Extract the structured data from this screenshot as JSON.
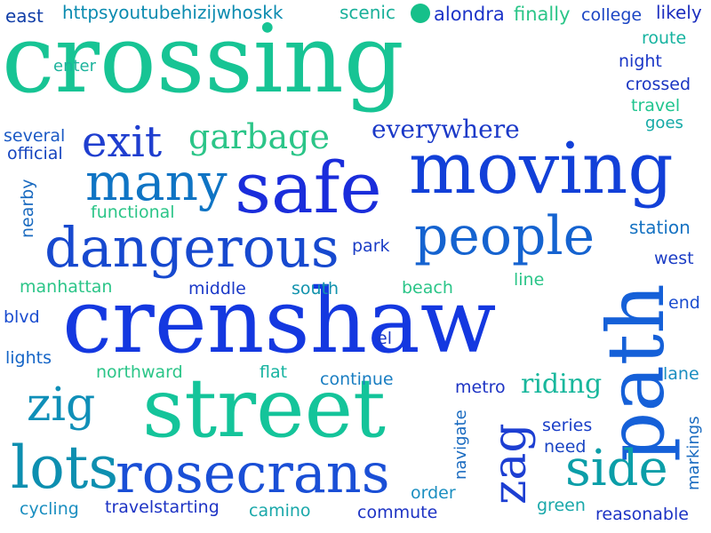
{
  "palette": {
    "teal": "#17c494",
    "sea": "#12b3a0",
    "cyan": "#0aa6b8",
    "sky": "#0b7fc8",
    "azure": "#1459d9",
    "blue": "#1f3fd6",
    "navy": "#2234c9",
    "green": "#29c783"
  },
  "words": [
    {
      "id": "crossing",
      "text": "crossing",
      "color": "#17c494"
    },
    {
      "id": "crenshaw",
      "text": "crenshaw",
      "color": "#1438e0"
    },
    {
      "id": "street",
      "text": "street",
      "color": "#14c49a"
    },
    {
      "id": "path",
      "text": "path",
      "color": "#1560d8"
    },
    {
      "id": "safe",
      "text": "safe",
      "color": "#1a2ddb"
    },
    {
      "id": "moving",
      "text": "moving",
      "color": "#1240d8"
    },
    {
      "id": "rosecrans",
      "text": "rosecrans",
      "color": "#1a4fd6"
    },
    {
      "id": "dangerous",
      "text": "dangerous",
      "color": "#1749cf"
    },
    {
      "id": "lots",
      "text": "lots",
      "color": "#0d8fb0"
    },
    {
      "id": "people",
      "text": "people",
      "color": "#1563d0"
    },
    {
      "id": "many",
      "text": "many",
      "color": "#0f74c4"
    },
    {
      "id": "exit",
      "text": "exit",
      "color": "#1f3ecf"
    },
    {
      "id": "side",
      "text": "side",
      "color": "#0b9ea8"
    },
    {
      "id": "zig",
      "text": "zig",
      "color": "#0f8fb8"
    },
    {
      "id": "zag",
      "text": "zag",
      "color": "#1d3fd2"
    },
    {
      "id": "garbage",
      "text": "garbage",
      "color": "#2bc588"
    },
    {
      "id": "everywhere",
      "text": "everywhere",
      "color": "#1b39c8"
    },
    {
      "id": "riding",
      "text": "riding",
      "color": "#18b79c"
    },
    {
      "id": "httpsyoutubehizijwhoskk",
      "text": "httpsyoutubehizijwhoskk",
      "color": "#0b8bb0"
    },
    {
      "id": "east",
      "text": "east",
      "color": "#123fa8"
    },
    {
      "id": "scenic",
      "text": "scenic",
      "color": "#19b09a"
    },
    {
      "id": "alondra",
      "text": "alondra",
      "color": "#1b33c8"
    },
    {
      "id": "finally",
      "text": "finally",
      "color": "#2bc588"
    },
    {
      "id": "college",
      "text": "college",
      "color": "#1b45c4"
    },
    {
      "id": "likely",
      "text": "likely",
      "color": "#1d2fbf"
    },
    {
      "id": "route",
      "text": "route",
      "color": "#16b3a0"
    },
    {
      "id": "night",
      "text": "night",
      "color": "#1b37c7"
    },
    {
      "id": "crossed",
      "text": "crossed",
      "color": "#1a35c2"
    },
    {
      "id": "travel",
      "text": "travel",
      "color": "#20c58f"
    },
    {
      "id": "goes",
      "text": "goes",
      "color": "#13a9a6"
    },
    {
      "id": "enter",
      "text": "enter",
      "color": "#1cb39c"
    },
    {
      "id": "several",
      "text": "several",
      "color": "#1b5ac5"
    },
    {
      "id": "official",
      "text": "official",
      "color": "#1544bf"
    },
    {
      "id": "nearby",
      "text": "nearby",
      "color": "#1b6bc0"
    },
    {
      "id": "functional",
      "text": "functional",
      "color": "#2bc588"
    },
    {
      "id": "station",
      "text": "station",
      "color": "#1572c2"
    },
    {
      "id": "west",
      "text": "west",
      "color": "#1a3cc5"
    },
    {
      "id": "park",
      "text": "park",
      "color": "#1a3cc5"
    },
    {
      "id": "manhattan",
      "text": "manhattan",
      "color": "#2bc588"
    },
    {
      "id": "middle",
      "text": "middle",
      "color": "#1b39c8"
    },
    {
      "id": "south",
      "text": "south",
      "color": "#1293ad"
    },
    {
      "id": "beach",
      "text": "beach",
      "color": "#2bc588"
    },
    {
      "id": "line",
      "text": "line",
      "color": "#2bc588"
    },
    {
      "id": "end",
      "text": "end",
      "color": "#1a4ccf"
    },
    {
      "id": "blvd",
      "text": "blvd",
      "color": "#1a4ccf"
    },
    {
      "id": "el",
      "text": "el",
      "color": "#1b39c8"
    },
    {
      "id": "lights",
      "text": "lights",
      "color": "#1565c7"
    },
    {
      "id": "northward",
      "text": "northward",
      "color": "#2bc588"
    },
    {
      "id": "flat",
      "text": "flat",
      "color": "#16b3a0"
    },
    {
      "id": "continue",
      "text": "continue",
      "color": "#1a7ec2"
    },
    {
      "id": "metro",
      "text": "metro",
      "color": "#1d33c4"
    },
    {
      "id": "lane",
      "text": "lane",
      "color": "#1a8ec0"
    },
    {
      "id": "navigate",
      "text": "navigate",
      "color": "#1a6bc0"
    },
    {
      "id": "series",
      "text": "series",
      "color": "#1b3fc8"
    },
    {
      "id": "markings",
      "text": "markings",
      "color": "#1a6bc0"
    },
    {
      "id": "need",
      "text": "need",
      "color": "#1b45c4"
    },
    {
      "id": "order",
      "text": "order",
      "color": "#1a8ec0"
    },
    {
      "id": "cycling",
      "text": "cycling",
      "color": "#1a8ec0"
    },
    {
      "id": "travelstarting",
      "text": "travelstarting",
      "color": "#1d33c4"
    },
    {
      "id": "camino",
      "text": "camino",
      "color": "#1aa8aa"
    },
    {
      "id": "commute",
      "text": "commute",
      "color": "#1d33c4"
    },
    {
      "id": "green",
      "text": "green",
      "color": "#1aa8aa"
    },
    {
      "id": "reasonable",
      "text": "reasonable",
      "color": "#1d33c4"
    }
  ]
}
